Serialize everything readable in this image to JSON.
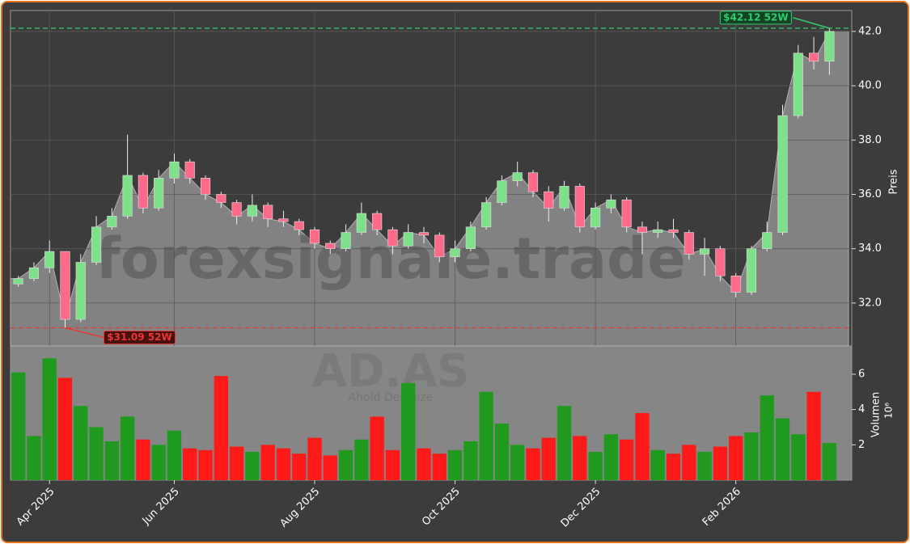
{
  "chart_data": {
    "type": "candlestick",
    "watermark": "forexsignale.trade",
    "symbol": "AD.AS",
    "company": "Ahold Delhaize",
    "ylabel": "Preis",
    "volume_label": "Volumen",
    "volume_offset": "10⁶",
    "categories": [
      null,
      null,
      "Apr 2025",
      null,
      null,
      null,
      null,
      null,
      null,
      null,
      "Jun 2025",
      null,
      null,
      null,
      null,
      null,
      null,
      null,
      null,
      "Aug 2025",
      null,
      null,
      null,
      null,
      null,
      null,
      null,
      null,
      "Oct 2025",
      null,
      null,
      null,
      null,
      null,
      null,
      null,
      null,
      "Dec 2025",
      null,
      null,
      null,
      null,
      null,
      null,
      null,
      null,
      "Feb 2026",
      null,
      null,
      null,
      null,
      null,
      null
    ],
    "open": [
      32.7,
      32.9,
      33.3,
      33.9,
      31.4,
      33.5,
      34.8,
      35.2,
      36.7,
      35.5,
      36.6,
      37.2,
      36.6,
      36.0,
      35.7,
      35.2,
      35.6,
      35.1,
      35.0,
      34.7,
      34.2,
      34.0,
      34.6,
      35.3,
      34.7,
      34.1,
      34.6,
      34.5,
      33.7,
      34.0,
      34.8,
      35.7,
      36.5,
      36.8,
      36.1,
      35.5,
      36.3,
      34.8,
      35.5,
      35.8,
      34.8,
      34.6,
      34.7,
      34.6,
      33.8,
      34.0,
      33.0,
      32.4,
      34.0,
      34.6,
      38.9,
      41.2,
      40.9
    ],
    "high": [
      33.0,
      33.5,
      34.3,
      33.9,
      33.8,
      35.2,
      35.5,
      38.2,
      36.8,
      36.9,
      37.5,
      37.3,
      36.7,
      36.1,
      35.8,
      36.0,
      35.7,
      35.4,
      35.1,
      34.8,
      34.3,
      34.9,
      35.7,
      35.4,
      34.8,
      34.9,
      34.8,
      34.6,
      34.3,
      35.0,
      35.9,
      36.7,
      37.2,
      36.9,
      36.3,
      36.5,
      36.4,
      35.7,
      36.0,
      35.9,
      35.0,
      35.0,
      35.1,
      34.7,
      34.4,
      34.1,
      33.1,
      34.1,
      35.0,
      39.3,
      41.5,
      41.8,
      42.12
    ],
    "low": [
      32.6,
      32.8,
      33.1,
      31.09,
      31.3,
      33.4,
      34.7,
      35.1,
      35.3,
      35.4,
      36.4,
      36.4,
      35.8,
      35.5,
      34.9,
      35.0,
      34.8,
      34.8,
      34.5,
      34.0,
      33.8,
      33.9,
      34.5,
      34.5,
      33.8,
      34.0,
      34.2,
      33.5,
      33.5,
      33.9,
      34.7,
      35.6,
      36.3,
      35.9,
      35.0,
      35.4,
      34.6,
      34.7,
      35.3,
      34.6,
      33.8,
      34.4,
      34.4,
      33.6,
      33.0,
      32.8,
      32.2,
      32.3,
      33.9,
      34.5,
      38.8,
      40.6,
      40.4
    ],
    "close": [
      32.9,
      33.3,
      33.9,
      31.4,
      33.5,
      34.8,
      35.2,
      36.7,
      35.5,
      36.6,
      37.2,
      36.6,
      36.0,
      35.7,
      35.2,
      35.6,
      35.1,
      35.0,
      34.7,
      34.2,
      34.0,
      34.6,
      35.3,
      34.7,
      34.1,
      34.6,
      34.5,
      33.7,
      34.0,
      34.8,
      35.7,
      36.5,
      36.8,
      36.1,
      35.5,
      36.3,
      34.8,
      35.5,
      35.8,
      34.8,
      34.6,
      34.7,
      34.6,
      33.8,
      34.0,
      33.0,
      32.4,
      34.0,
      34.6,
      38.9,
      41.2,
      40.9,
      42.0
    ],
    "volume": [
      6.1,
      2.5,
      6.9,
      5.8,
      4.2,
      3.0,
      2.2,
      3.6,
      2.3,
      2.0,
      2.8,
      1.8,
      1.7,
      5.9,
      1.9,
      1.6,
      2.0,
      1.8,
      1.5,
      2.4,
      1.4,
      1.7,
      2.3,
      3.6,
      1.7,
      5.5,
      1.8,
      1.5,
      1.7,
      2.2,
      5.0,
      3.2,
      2.0,
      1.8,
      2.4,
      4.2,
      2.5,
      1.6,
      2.6,
      2.3,
      3.8,
      1.7,
      1.5,
      2.0,
      1.6,
      1.9,
      2.5,
      2.7,
      4.8,
      3.5,
      2.6,
      5.0,
      2.1
    ],
    "up_color": "#7fe08a",
    "down_color": "#ff6a8a",
    "volume_up_color": "#1f9a1f",
    "volume_down_color": "#ff1a1a",
    "area_color": "#828282",
    "ylim": [
      30.42,
      42.77
    ],
    "yticks": [
      {
        "value": 32,
        "label": "32.0"
      },
      {
        "value": 34,
        "label": "34.0"
      },
      {
        "value": 36,
        "label": "36.0"
      },
      {
        "value": 38,
        "label": "38.0"
      },
      {
        "value": 40,
        "label": "40.0"
      },
      {
        "value": 42,
        "label": "42.0"
      }
    ],
    "volume_ylim": [
      0,
      7.6
    ],
    "volume_yticks": [
      2,
      4,
      6
    ],
    "grid": true,
    "annotations": [
      {
        "value": 42.12,
        "label": "$42.12 52W",
        "color": "#2ecc71"
      },
      {
        "value": 31.09,
        "label": "$31.09 52W",
        "color": "#e53935"
      }
    ]
  }
}
